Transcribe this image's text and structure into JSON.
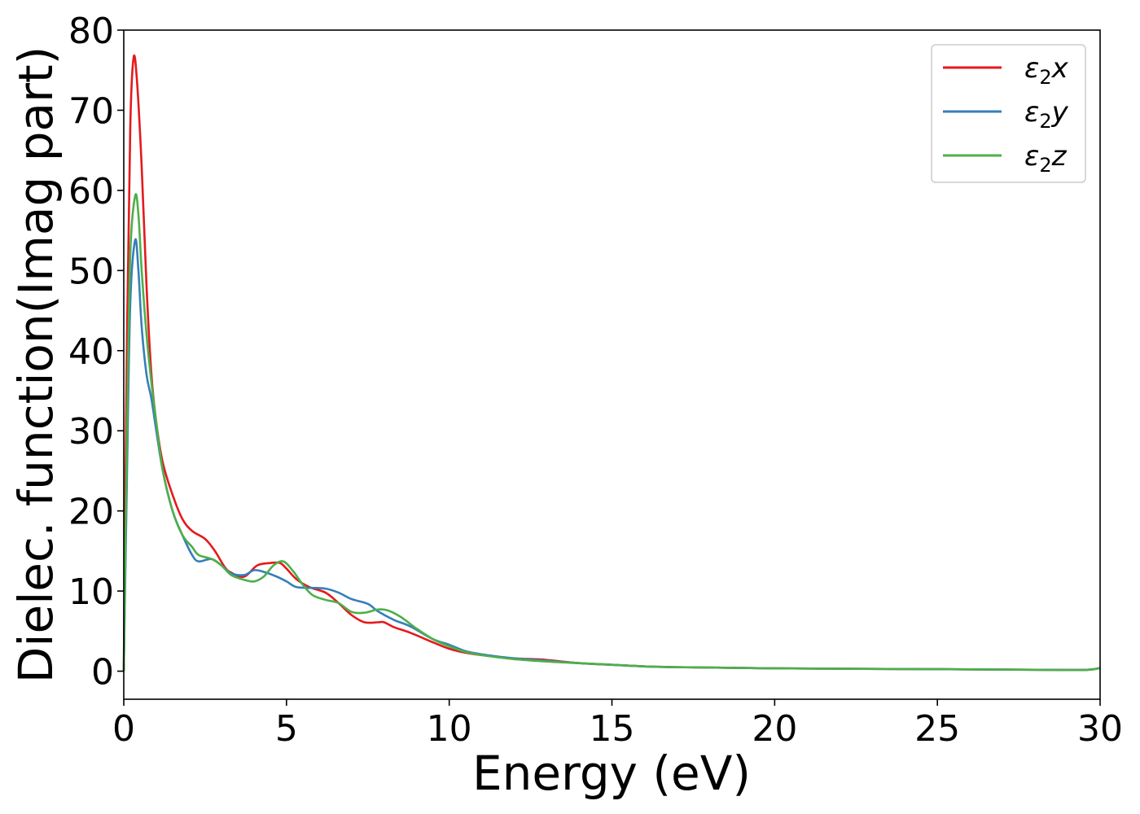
{
  "chart_data": {
    "type": "line",
    "title": "",
    "xlabel": "Energy (eV)",
    "ylabel": "Dielec. function(Imag part)",
    "xlim": [
      0,
      30
    ],
    "ylim": [
      -3.5,
      80
    ],
    "xticks": [
      "0",
      "5",
      "10",
      "15",
      "20",
      "25",
      "30"
    ],
    "yticks": [
      "0",
      "10",
      "20",
      "30",
      "40",
      "50",
      "60",
      "70",
      "80"
    ],
    "grid": false,
    "legend": "top-right",
    "series": [
      {
        "name": "ε2x",
        "symbol": "ε",
        "sub": "2",
        "axis": "x",
        "color": "#e41a1c",
        "points": [
          [
            0,
            0
          ],
          [
            0.1,
            42
          ],
          [
            0.2,
            68
          ],
          [
            0.3,
            76.5
          ],
          [
            0.4,
            74
          ],
          [
            0.55,
            63
          ],
          [
            0.7,
            48
          ],
          [
            0.85,
            37
          ],
          [
            1.0,
            31
          ],
          [
            1.2,
            26
          ],
          [
            1.5,
            22
          ],
          [
            1.8,
            19
          ],
          [
            2.1,
            17.5
          ],
          [
            2.5,
            16.5
          ],
          [
            2.8,
            15
          ],
          [
            3.1,
            13
          ],
          [
            3.3,
            12.3
          ],
          [
            3.7,
            11.8
          ],
          [
            4.1,
            13.2
          ],
          [
            4.5,
            13.5
          ],
          [
            4.8,
            13.5
          ],
          [
            5.0,
            12.8
          ],
          [
            5.3,
            11.5
          ],
          [
            5.7,
            10.5
          ],
          [
            6.2,
            9.8
          ],
          [
            6.6,
            8.5
          ],
          [
            7.0,
            7
          ],
          [
            7.4,
            6.1
          ],
          [
            7.8,
            6.1
          ],
          [
            8.0,
            6.1
          ],
          [
            8.3,
            5.5
          ],
          [
            8.8,
            4.8
          ],
          [
            9.5,
            3.6
          ],
          [
            10.0,
            2.8
          ],
          [
            10.5,
            2.3
          ],
          [
            11.0,
            2.0
          ],
          [
            12.0,
            1.6
          ],
          [
            12.6,
            1.5
          ],
          [
            13.0,
            1.4
          ],
          [
            14.0,
            1.0
          ],
          [
            15.0,
            0.8
          ],
          [
            16.0,
            0.6
          ],
          [
            17.0,
            0.5
          ],
          [
            20.0,
            0.35
          ],
          [
            25.0,
            0.25
          ],
          [
            29.0,
            0.15
          ],
          [
            29.7,
            0.2
          ],
          [
            30.0,
            0.4
          ]
        ]
      },
      {
        "name": "ε2y",
        "symbol": "ε",
        "sub": "2",
        "axis": "y",
        "color": "#377eb8",
        "points": [
          [
            0,
            0
          ],
          [
            0.1,
            25
          ],
          [
            0.2,
            46
          ],
          [
            0.35,
            53.8
          ],
          [
            0.45,
            50
          ],
          [
            0.55,
            43
          ],
          [
            0.7,
            37
          ],
          [
            0.85,
            34
          ],
          [
            1.0,
            30
          ],
          [
            1.2,
            25
          ],
          [
            1.5,
            20
          ],
          [
            1.8,
            17
          ],
          [
            2.1,
            14.5
          ],
          [
            2.3,
            13.7
          ],
          [
            2.7,
            14
          ],
          [
            3.0,
            13.2
          ],
          [
            3.3,
            12.2
          ],
          [
            3.7,
            12.0
          ],
          [
            4.0,
            12.6
          ],
          [
            4.3,
            12.4
          ],
          [
            4.7,
            11.8
          ],
          [
            5.0,
            11.2
          ],
          [
            5.3,
            10.5
          ],
          [
            5.7,
            10.4
          ],
          [
            6.2,
            10.3
          ],
          [
            6.6,
            9.8
          ],
          [
            7.0,
            9.0
          ],
          [
            7.5,
            8.4
          ],
          [
            7.8,
            7.5
          ],
          [
            8.3,
            6.4
          ],
          [
            8.8,
            5.6
          ],
          [
            9.5,
            4.0
          ],
          [
            10.0,
            3.3
          ],
          [
            10.5,
            2.5
          ],
          [
            11.0,
            2.1
          ],
          [
            12.0,
            1.6
          ],
          [
            13.0,
            1.3
          ],
          [
            14.0,
            1.0
          ],
          [
            15.0,
            0.8
          ],
          [
            16.0,
            0.6
          ],
          [
            17.0,
            0.5
          ],
          [
            20.0,
            0.35
          ],
          [
            25.0,
            0.25
          ],
          [
            29.0,
            0.15
          ],
          [
            29.7,
            0.2
          ],
          [
            30.0,
            0.4
          ]
        ]
      },
      {
        "name": "ε2z",
        "symbol": "ε",
        "sub": "2",
        "axis": "z",
        "color": "#4daf4a",
        "points": [
          [
            0,
            0
          ],
          [
            0.1,
            30
          ],
          [
            0.2,
            52
          ],
          [
            0.35,
            59.3
          ],
          [
            0.45,
            57
          ],
          [
            0.55,
            50
          ],
          [
            0.7,
            42
          ],
          [
            0.85,
            36
          ],
          [
            1.0,
            31
          ],
          [
            1.2,
            25
          ],
          [
            1.5,
            20
          ],
          [
            1.8,
            17
          ],
          [
            2.1,
            15.5
          ],
          [
            2.3,
            14.5
          ],
          [
            2.7,
            14
          ],
          [
            3.0,
            13.2
          ],
          [
            3.3,
            12
          ],
          [
            3.7,
            11.4
          ],
          [
            4.0,
            11.2
          ],
          [
            4.3,
            11.8
          ],
          [
            4.6,
            13.2
          ],
          [
            4.9,
            13.7
          ],
          [
            5.2,
            12.5
          ],
          [
            5.5,
            10.8
          ],
          [
            5.8,
            9.5
          ],
          [
            6.2,
            8.9
          ],
          [
            6.6,
            8.5
          ],
          [
            7.0,
            7.4
          ],
          [
            7.4,
            7.3
          ],
          [
            7.8,
            7.7
          ],
          [
            8.1,
            7.6
          ],
          [
            8.5,
            6.8
          ],
          [
            9.0,
            5.3
          ],
          [
            9.5,
            4.0
          ],
          [
            10.0,
            3.1
          ],
          [
            10.5,
            2.4
          ],
          [
            11.0,
            2.0
          ],
          [
            12.0,
            1.5
          ],
          [
            13.0,
            1.2
          ],
          [
            14.0,
            1.0
          ],
          [
            15.0,
            0.8
          ],
          [
            16.0,
            0.6
          ],
          [
            17.0,
            0.5
          ],
          [
            20.0,
            0.35
          ],
          [
            25.0,
            0.25
          ],
          [
            29.0,
            0.15
          ],
          [
            29.7,
            0.2
          ],
          [
            30.0,
            0.4
          ]
        ]
      }
    ]
  }
}
